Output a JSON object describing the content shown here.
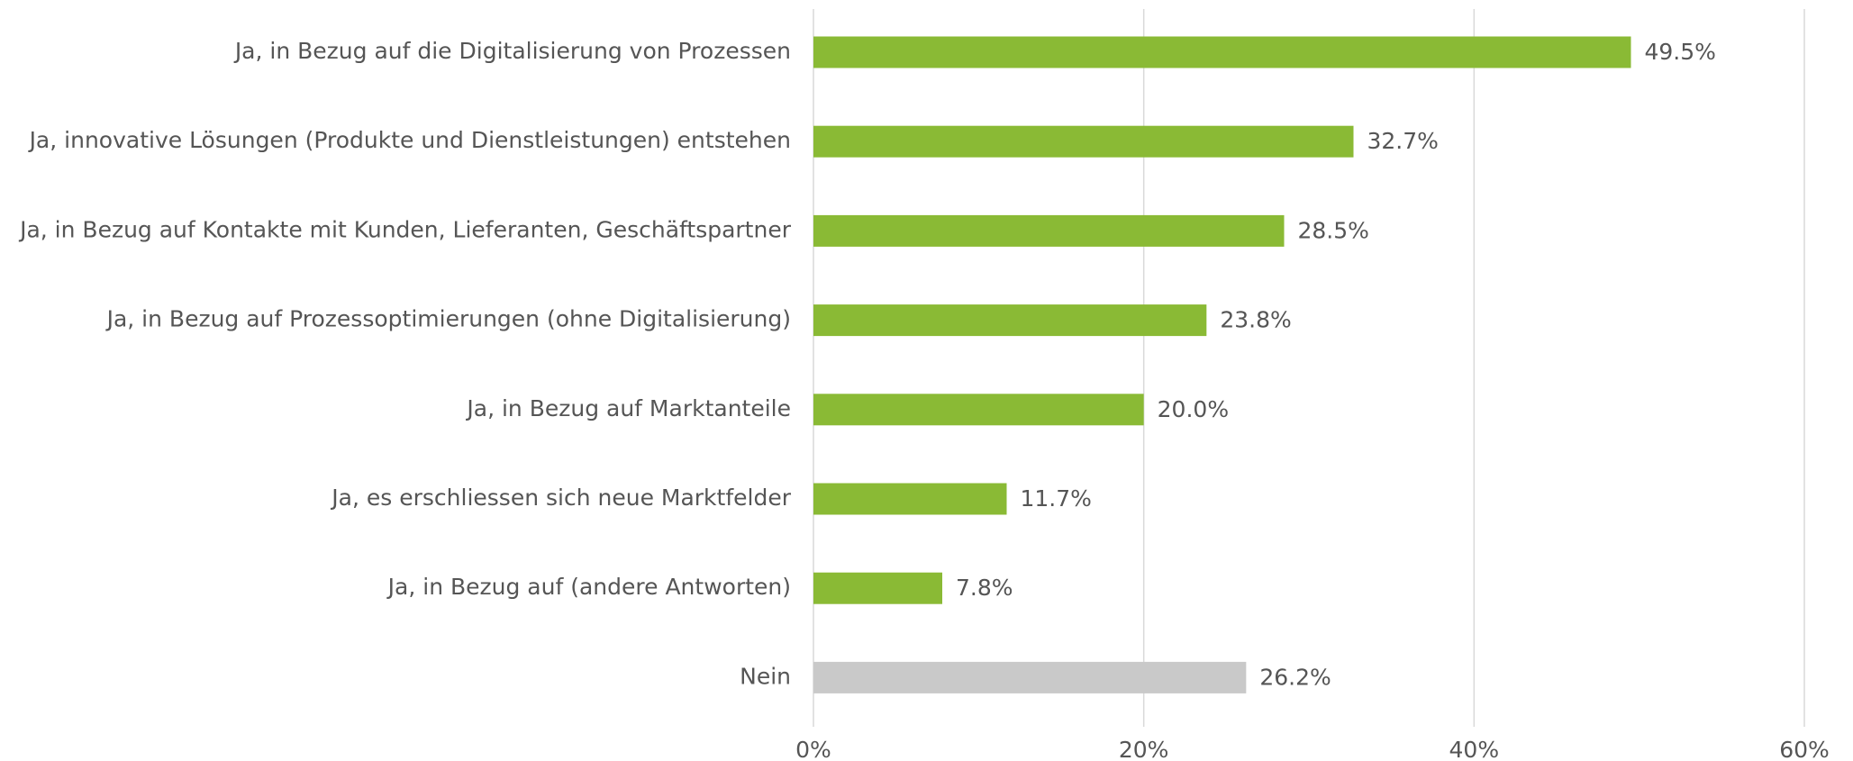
{
  "chart_data": {
    "type": "barh",
    "categories": [
      "Ja, in Bezug auf die Digitalisierung von Prozessen",
      "Ja, innovative Lösungen (Produkte und Dienstleistungen) entstehen",
      "Ja, in Bezug auf Kontakte mit Kunden, Lieferanten, Geschäftspartner",
      "Ja, in Bezug auf Prozessoptimierungen (ohne Digitalisierung)",
      "Ja, in Bezug auf Marktanteile",
      "Ja, es erschliessen sich neue Marktfelder",
      "Ja, in Bezug auf (andere Antworten)",
      "Nein"
    ],
    "values": [
      49.5,
      32.7,
      28.5,
      23.8,
      20.0,
      11.7,
      7.8,
      26.2
    ],
    "value_labels": [
      "49.5%",
      "32.7%",
      "28.5%",
      "23.8%",
      "20.0%",
      "11.7%",
      "7.8%",
      "26.2%"
    ],
    "colors": [
      "#8aba35",
      "#8aba35",
      "#8aba35",
      "#8aba35",
      "#8aba35",
      "#8aba35",
      "#8aba35",
      "#c9c9c9"
    ],
    "xlim": [
      0,
      60
    ],
    "xticks": [
      {
        "value": 0,
        "label": "0%"
      },
      {
        "value": 20,
        "label": "20%"
      },
      {
        "value": 40,
        "label": "40%"
      },
      {
        "value": 60,
        "label": "60%"
      }
    ],
    "grid": true
  }
}
